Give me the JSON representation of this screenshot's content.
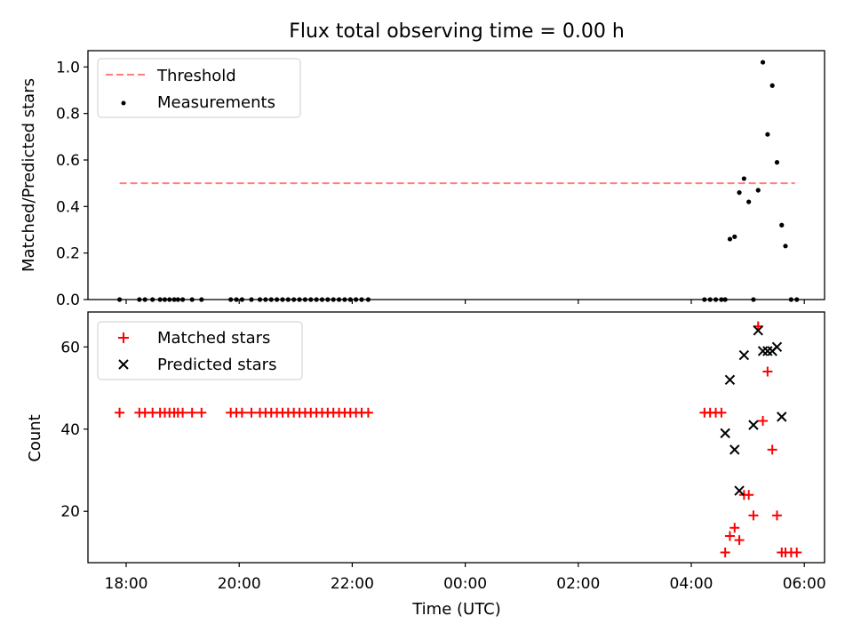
{
  "chart_data": [
    {
      "type": "scatter",
      "title": "Flux total observing time = 0.00 h",
      "xlabel": "",
      "ylabel": "Matched/Predicted stars",
      "ylim": [
        0,
        1.07
      ],
      "yticks": [
        0.0,
        0.2,
        0.4,
        0.6,
        0.8,
        1.0
      ],
      "ytick_labels": [
        "0.0",
        "0.2",
        "0.4",
        "0.6",
        "0.8",
        "1.0"
      ],
      "legend": "top-left",
      "series": [
        {
          "name": "Threshold",
          "style": "dashed-line",
          "color": "#ff7f7f",
          "x": [
            "17:53",
            "05:50"
          ],
          "y": [
            0.5,
            0.5
          ]
        },
        {
          "name": "Measurements",
          "style": "dot",
          "color": "#000000",
          "x": [
            "17:53",
            "18:14",
            "18:20",
            "18:28",
            "18:36",
            "18:41",
            "18:46",
            "18:51",
            "18:55",
            "19:00",
            "19:10",
            "19:20",
            "19:51",
            "19:57",
            "20:03",
            "20:13",
            "20:22",
            "20:28",
            "20:34",
            "20:40",
            "20:46",
            "20:52",
            "20:58",
            "21:04",
            "21:10",
            "21:16",
            "21:22",
            "21:28",
            "21:34",
            "21:40",
            "21:46",
            "21:52",
            "21:58",
            "22:04",
            "22:10",
            "22:17",
            "04:14",
            "04:20",
            "04:26",
            "04:32",
            "04:36",
            "04:41",
            "04:46",
            "04:51",
            "04:56",
            "05:01",
            "05:06",
            "05:11",
            "05:16",
            "05:21",
            "05:26",
            "05:31",
            "05:36",
            "05:40",
            "05:46",
            "05:52"
          ],
          "y": [
            0,
            0,
            0,
            0,
            0,
            0,
            0,
            0,
            0,
            0,
            0,
            0,
            0,
            0,
            0,
            0,
            0,
            0,
            0,
            0,
            0,
            0,
            0,
            0,
            0,
            0,
            0,
            0,
            0,
            0,
            0,
            0,
            0,
            0,
            0,
            0,
            0,
            0,
            0,
            0,
            0,
            0.26,
            0.27,
            0.46,
            0.52,
            0.42,
            0,
            0.47,
            1.02,
            0.71,
            0.92,
            0.59,
            0.32,
            0.23,
            0,
            0
          ]
        }
      ]
    },
    {
      "type": "scatter",
      "title": "",
      "xlabel": "Time (UTC)",
      "ylabel": "Count",
      "ylim": [
        7.5,
        68.5
      ],
      "yticks": [
        20,
        40,
        60
      ],
      "ytick_labels": [
        "20",
        "40",
        "60"
      ],
      "xticks": [
        "18:00",
        "20:00",
        "22:00",
        "00:00",
        "02:00",
        "04:00",
        "06:00"
      ],
      "legend": "top-left",
      "series": [
        {
          "name": "Matched stars",
          "style": "plus",
          "color": "#ff0000",
          "x": [
            "17:53",
            "18:14",
            "18:20",
            "18:28",
            "18:36",
            "18:41",
            "18:46",
            "18:51",
            "18:55",
            "19:00",
            "19:10",
            "19:20",
            "19:51",
            "19:57",
            "20:03",
            "20:13",
            "20:22",
            "20:28",
            "20:34",
            "20:40",
            "20:46",
            "20:52",
            "20:58",
            "21:04",
            "21:10",
            "21:16",
            "21:22",
            "21:28",
            "21:34",
            "21:40",
            "21:46",
            "21:52",
            "21:58",
            "22:04",
            "22:10",
            "22:17",
            "04:14",
            "04:20",
            "04:26",
            "04:32",
            "04:36",
            "04:41",
            "04:46",
            "04:51",
            "04:56",
            "05:01",
            "05:06",
            "05:11",
            "05:16",
            "05:21",
            "05:26",
            "05:31",
            "05:36",
            "05:40",
            "05:46",
            "05:52"
          ],
          "y": [
            44,
            44,
            44,
            44,
            44,
            44,
            44,
            44,
            44,
            44,
            44,
            44,
            44,
            44,
            44,
            44,
            44,
            44,
            44,
            44,
            44,
            44,
            44,
            44,
            44,
            44,
            44,
            44,
            44,
            44,
            44,
            44,
            44,
            44,
            44,
            44,
            44,
            44,
            44,
            44,
            10,
            14,
            16,
            13,
            24,
            24,
            19,
            65,
            42,
            54,
            35,
            19,
            10,
            10,
            10,
            10
          ]
        },
        {
          "name": "Predicted stars",
          "style": "x",
          "color": "#000000",
          "x": [
            "04:36",
            "04:41",
            "04:46",
            "04:51",
            "04:56",
            "05:06",
            "05:11",
            "05:16",
            "05:21",
            "05:26",
            "05:31",
            "05:36",
            "05:40"
          ],
          "y": [
            39,
            52,
            35,
            25,
            58,
            41,
            64,
            59,
            59,
            59,
            60,
            43,
            null
          ]
        }
      ]
    }
  ]
}
